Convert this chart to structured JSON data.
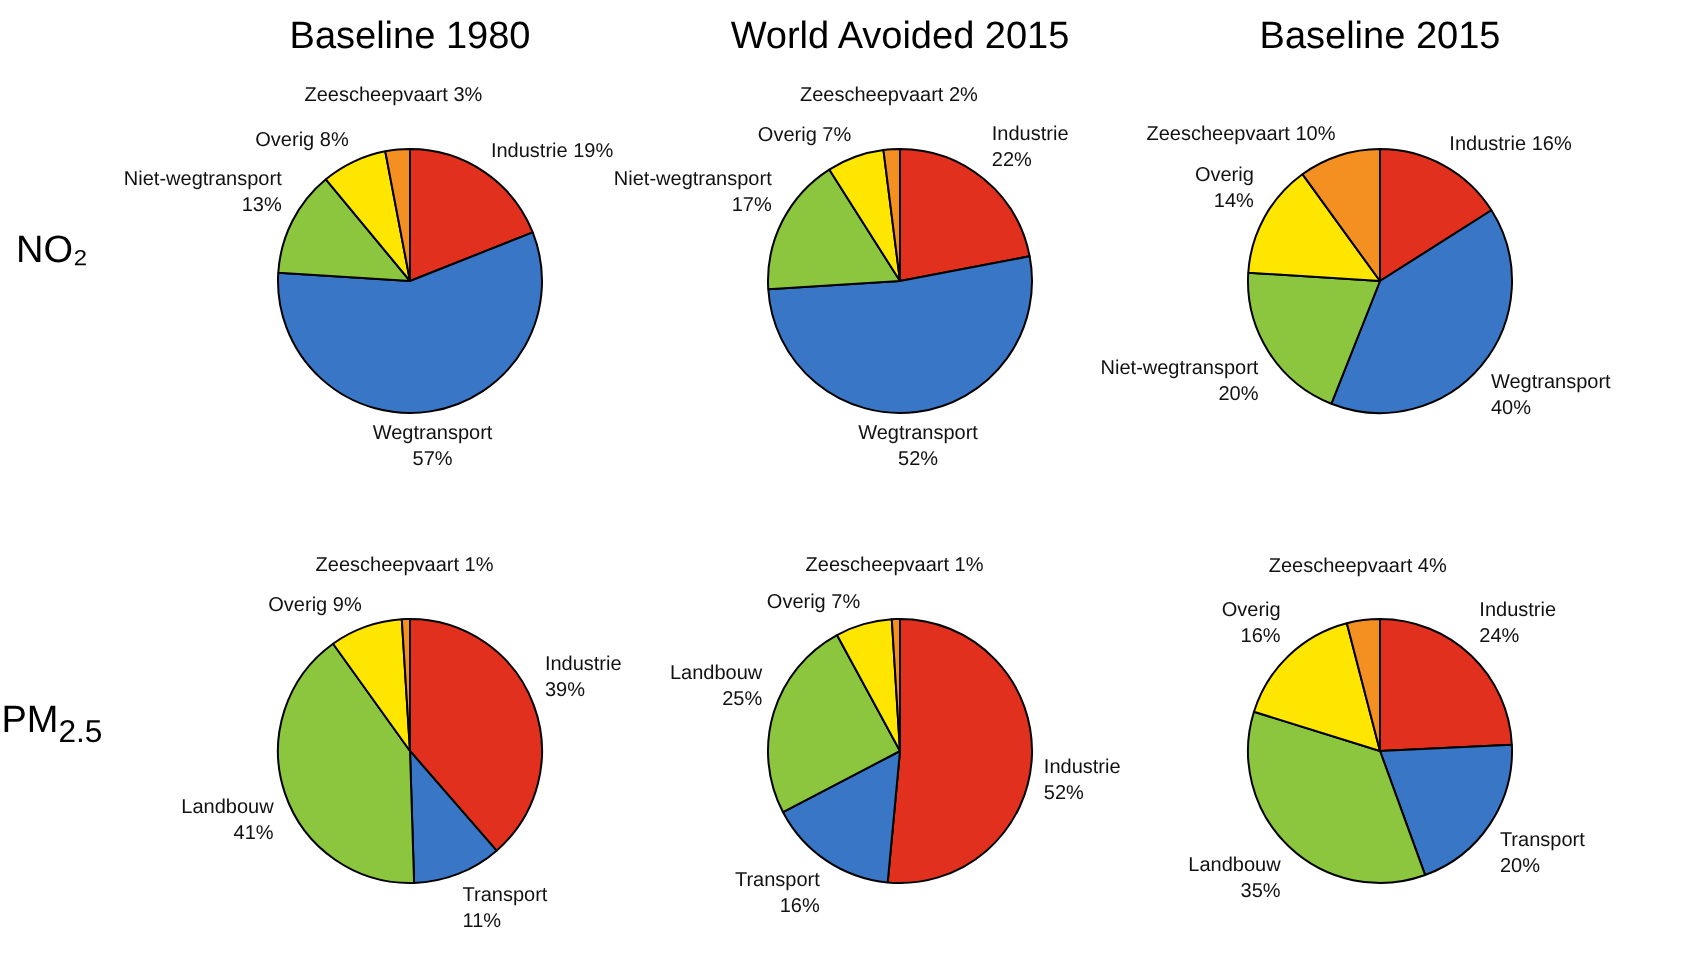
{
  "chart_data": [
    {
      "type": "pie",
      "title": "Baseline 1980",
      "ylabel": "NO₂",
      "categories": [
        "Industrie",
        "Wegtransport",
        "Niet-wegtransport",
        "Overig",
        "Zeescheepvaart"
      ],
      "values": [
        19,
        57,
        13,
        8,
        3
      ],
      "value_labels": [
        "19%",
        "57%",
        "13%",
        "8%",
        "3%"
      ],
      "colors": [
        "#e2301f",
        "#3a76c6",
        "#8cc63f",
        "#ffe600",
        "#f39021"
      ]
    },
    {
      "type": "pie",
      "title": "World Avoided 2015",
      "categories": [
        "Industrie",
        "Wegtransport",
        "Niet-wegtransport",
        "Overig",
        "Zeescheepvaart"
      ],
      "values": [
        22,
        52,
        17,
        7,
        2
      ],
      "value_labels": [
        "22%",
        "52%",
        "17%",
        "7%",
        "2%"
      ],
      "colors": [
        "#e2301f",
        "#3a76c6",
        "#8cc63f",
        "#ffe600",
        "#f39021"
      ]
    },
    {
      "type": "pie",
      "title": "Baseline 2015",
      "categories": [
        "Industrie",
        "Wegtransport",
        "Niet-wegtransport",
        "Overig",
        "Zeescheepvaart"
      ],
      "values": [
        16,
        40,
        20,
        14,
        10
      ],
      "value_labels": [
        "16%",
        "40%",
        "20%",
        "14%",
        "10%"
      ],
      "colors": [
        "#e2301f",
        "#3a76c6",
        "#8cc63f",
        "#ffe600",
        "#f39021"
      ]
    },
    {
      "type": "pie",
      "ylabel": "PM$_{2.5}$",
      "categories": [
        "Industrie",
        "Transport",
        "Landbouw",
        "Overig",
        "Zeescheepvaart"
      ],
      "values": [
        39,
        11,
        41,
        9,
        1
      ],
      "value_labels": [
        "39%",
        "11%",
        "41%",
        "9%",
        "1%"
      ],
      "colors": [
        "#e2301f",
        "#3a76c6",
        "#8cc63f",
        "#ffe600",
        "#f39021"
      ]
    },
    {
      "type": "pie",
      "categories": [
        "Industrie",
        "Transport",
        "Landbouw",
        "Overig",
        "Zeescheepvaart"
      ],
      "values": [
        52,
        16,
        25,
        7,
        1
      ],
      "value_labels": [
        "52%",
        "16%",
        "25%",
        "7%",
        "1%"
      ],
      "colors": [
        "#e2301f",
        "#3a76c6",
        "#8cc63f",
        "#ffe600",
        "#f39021"
      ]
    },
    {
      "type": "pie",
      "categories": [
        "Industrie",
        "Transport",
        "Landbouw",
        "Overig",
        "Zeescheepvaart"
      ],
      "values": [
        24,
        20,
        35,
        16,
        4
      ],
      "value_labels": [
        "24%",
        "20%",
        "35%",
        "16%",
        "4%"
      ],
      "colors": [
        "#e2301f",
        "#3a76c6",
        "#8cc63f",
        "#ffe600",
        "#f39021"
      ]
    }
  ]
}
